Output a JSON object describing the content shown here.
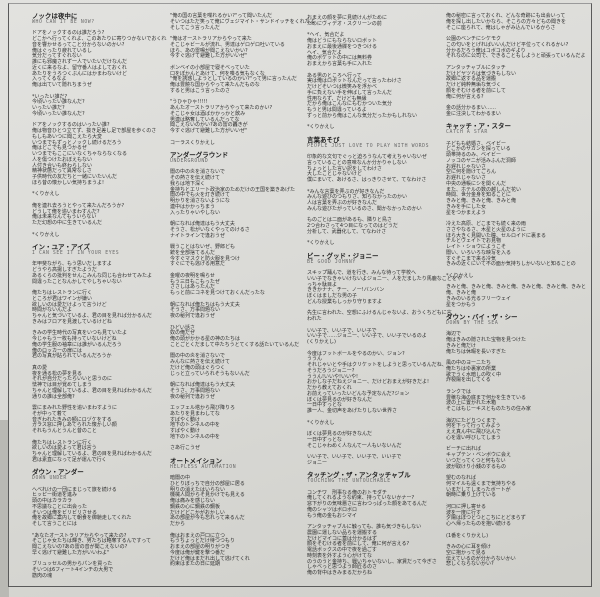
{
  "columns": [
    {
      "blocks": [
        {
          "type": "title",
          "title": "ノックは夜中に",
          "subtitle": "WHO CAN IT BE NOW?"
        },
        {
          "type": "stanza",
          "lines": [
            "ドアをノックするのは誰だろう?",
            "どこかへ行ってくれよ、このあたりに寄りつかないでおくれ",
            "音を響かせるってこと分からないのかい?",
            "俺はぐったり疲れているし",
            "気分だってすぐれない",
            "誰にも邪魔されず一人でいたいだけなんだ",
            "近くに来るなよ、留守番人はよしておくれ",
            "あたりをうろつくぶんにはかまわないけど",
            "入ってくるなよ",
            "俺は出ていて隠れちまうぜ"
          ]
        },
        {
          "type": "stanza",
          "lines": [
            "*いったい誰だ?",
            "  今頃いったい誰なんだ?",
            "  いったい誰だ?",
            "  今頃いったい誰なんだ?"
          ]
        },
        {
          "type": "stanza",
          "lines": [
            "ドアをノックするのはいったい誰?",
            "俺は物音ひとつ立てず、抜き足差し足で部屋を歩くのさ",
            "もしもあいつに聞こえたら大変",
            "いつまでもずっとノックし続けるだろう",
            "俺はどこでも見つかるぜ",
            "いつまでもここにいなくちゃならなくなる",
            "人を傷つけたおぼえもない",
            "人付き合いも終わらしない",
            "精神状態だって異常なしさ",
            "子供時代の友だちと一緒にいたいんだ",
            "ほら昔の懐かしい気持ちまうよ!"
          ]
        },
        {
          "type": "stanza",
          "lines": [
            "*くりかえし"
          ]
        },
        {
          "type": "stanza",
          "lines": [
            "俺を連れ去ろうとやって来たんだろうか?",
            "どうして俺を追いまわすんだ?",
            "俺は未来なんてもういらない",
            "ただ幻想の中に生きているんだ"
          ]
        },
        {
          "type": "stanza",
          "lines": [
            "*くりかえし"
          ]
        },
        {
          "type": "title",
          "title": "イン・ユア・アイズ",
          "subtitle": "I CAN SEE IT IN YOUR EYES"
        },
        {
          "type": "stanza",
          "lines": [
            "年甲斐ながら、もう思いだしますよ",
            "どうやら高揚しすぎたようだ",
            "あるくらの批判をせんこみんな同じも合わせてみたよ",
            "間違ったことなんかしてやしちゃいない"
          ]
        },
        {
          "type": "stanza",
          "lines": [
            "俺たちはレストランに行く",
            "ところが君はワインが嫌い",
            "欲しいのは愛だけよって言うけど",
            "時間がないんだよ",
            "ちゃんと気づいているよ、君の目を見れば分かるんだ",
            "きみはフロアを見渡しているけどね"
          ]
        },
        {
          "type": "stanza",
          "lines": [
            "きみの学生時代の写真をいつも見ていたよ",
            "今じゃもう一枚も持っていないけどね",
            "俺の学生服の袖章には誰がいるんだろう",
            "俺のロッカーの扉には",
            "君の写真が貼られているんだろうか"
          ]
        },
        {
          "type": "stanza",
          "lines": [
            "真の愛",
            "夜を通る松の夢を見る",
            "それが自分だったらいいと思うのに",
            "怯神では目が覚めてしまう",
            "ちゃんと理解しているよ、君の目を見ればわかるんだ",
            "通りの誰は全部俺?"
          ]
        },
        {
          "type": "stanza",
          "lines": [
            "雲にまみれた野性を追いまわすように",
            "そが中って着て",
            "音ぎわれたきみの額にロヅケをする",
            "ガラス窓に押しあてられた懐かしい顔",
            "それもうんとうんと昔のこと"
          ]
        },
        {
          "type": "stanza",
          "lines": [
            "俺たちはレストランに行く",
            "欲しいのは愛よって君は言う",
            "ちゃんと理解しているよ、君の目を見ればわかるんだ",
            "君は素直になって足が運んで行く"
          ]
        },
        {
          "type": "title",
          "title": "ダウン・アンダー",
          "subtitle": "DOWN UNDER"
        },
        {
          "type": "stanza",
          "lines": [
            "へべれけの一団にまじって旅を続ける",
            "ヒッピー街道を進み",
            "頭の中はカラカラ",
            "不思議なことに出会った",
            "そいつは俺をビリビリさせる",
            "俺を故郷に案内して朝食を御馳走してくれた",
            "そして言うことには"
          ]
        },
        {
          "type": "stanza",
          "lines": [
            "\"あなたオーストラリアからやって来たの?",
            "そこじゃ女たちは輝き、男たちは略奪するんですって",
            "聞こえないの?あの雷の音が聞こえないの?",
            "早く逃げて避難した方がいいわよ\""
          ]
        },
        {
          "type": "stanza",
          "lines": [
            "ブリュッセルの男からパンを買った",
            "そいつは6フィート4インチの大男で",
            "筋肉の塊"
          ]
        }
      ]
    },
    {
      "blocks": [
        {
          "type": "stanza",
          "lines": [
            "\"俺の国の言葉を喋れるかい?\"って聞いたんだ",
            "そいつはただ笑って俺にヴェジマイト・サンドイッチをくれたよ",
            "そしてこう言ったんだ"
          ]
        },
        {
          "type": "stanza",
          "lines": [
            "\"俺はオーストラリアからやって来た",
            "そこじゃビールが流れ、男達はゲロゲロ吐いている",
            "ほら、あの雷鳴が聞こえないかい?",
            "今すぐ逃げて避難した方がいいぜ\""
          ]
        },
        {
          "type": "stanza",
          "lines": [
            "ボンベイの小部屋で寝そべっていた",
            "口をぽかんとあけて、何を喋る気もなくな",
            "\"俺を誘惑しようとしているのかい?\"って男に言ったんだ",
            "俺は豊饒な国からやって来たんだものな",
            "すると男はこう言ったのさ"
          ]
        },
        {
          "type": "stanza",
          "lines": [
            "\"うひゃひゃ!!!!!",
            "あんたオーストラリアからやって来たのかい?",
            "そこじゃ女は酒ばかかっかと飲み",
            "男連は略奪しているんだってな",
            "聞こえないのかい?あの雷の轟きが",
            "今すぐ逃げて避難した方がいいぜ\""
          ]
        },
        {
          "type": "stanza",
          "lines": [
            "コーラスくりかえし"
          ]
        },
        {
          "type": "title",
          "title": "アンダーグラウンド",
          "subtitle": "UNDERGROUND"
        },
        {
          "type": "stanza",
          "lines": [
            "闇の中の炎を消さないで",
            "その熱さを伝え続けて",
            "我らは地下深く",
            "金持ちとエリート政治家のためだけの王国を築きあげた",
            "闇の中でも火を灯き続けて",
            "明かりを消さないようにな",
            "連中はかかっちまう",
            "入ったりゃいやしない"
          ]
        },
        {
          "type": "stanza",
          "lines": [
            "朝になれば俺達はもう大丈夫",
            "そうさ、松がいなくやってのけるさ",
            "ナイトラインで逢おうぜ"
          ]
        },
        {
          "type": "stanza",
          "lines": [
            "戦うことはないぜ、野郎ども",
            "銃を全部捨てるんだ",
            "今すぐマスクと防火服を見つけ",
            "すぐにでも逃げる用意だ"
          ]
        },
        {
          "type": "stanza",
          "lines": [
            "金曜の夜明を鳴らせ",
            "もう三日もこもったぜ",
            "ささしはあったんだ",
            "もっと前にコネを見つけておくんだったな"
          ]
        },
        {
          "type": "stanza",
          "lines": [
            "朝になれば俺たちはもう大丈夫",
            "そうさ、万事問題ない",
            "夜の秘列で逢おうぜ"
          ]
        },
        {
          "type": "stanza",
          "lines": [
            "ひどい話さ",
            "奴の俺だぜ",
            "俺の頭がかかる星の神のたちは",
            "ことごとくだまして中たちうとてくする話たいているんだ"
          ]
        },
        {
          "type": "stanza",
          "lines": [
            "闇の中の炎を消さないで",
            "みんなに熱さを伝え続けて",
            "だけど俺の頭はぐらつく",
            "じっと立っていられそうもないんだ"
          ]
        },
        {
          "type": "stanza",
          "lines": [
            "朝になれば俺達はもう大丈夫",
            "そうさ、万事問題ない",
            "夜の秘列で逢おうぜ"
          ]
        },
        {
          "type": "stanza",
          "lines": [
            "エッフェル塔から飛び降りろ",
            "あたりを見まわしてな",
            "すばやく動け",
            "地下のトンネルの中を",
            "すばやく動け",
            "地下のトンネルの中を"
          ]
        },
        {
          "type": "stanza",
          "lines": [
            "さあ行こうぜ"
          ]
        },
        {
          "type": "title",
          "title": "オートメイション",
          "subtitle": "HELPLESS AUTOMATION"
        },
        {
          "type": "stanza",
          "lines": [
            "暗闇の中",
            "ひとりぼっちで自分の部屋に居る",
            "明りの消えたはいらない",
            "機械人間からそ見かけでも見える",
            "俺は痛みを感じない",
            "鋼鉄の心に鋼鉄の鋼板",
            "だけどどこかがおかしい",
            "あの部屋が今も忘れって来るんだ",
            "だから"
          ]
        },
        {
          "type": "stanza",
          "lines": [
            "俺はおまえの戸口に立つ",
            "もうちょっとだけ待つつもり",
            "おまえの部屋の明りがつき",
            "今度は俺が鍵を撃つ番だ",
            "だけど俺はまだれ出して逃げてくれ",
            "約束はまたの日に延期"
          ]
        }
      ]
    },
    {
      "blocks": [
        {
          "type": "stanza",
          "lines": [
            "おまえの顔を夢に見続けんがために",
            "ためにヴィデオ・スクリーンの前"
          ]
        },
        {
          "type": "stanza",
          "lines": [
            "*ヘイ、気合だよ",
            "  俺はどうにもならないロボット",
            "  おまえに最後通牒をつきつける",
            "  ヘイ、気合だよ",
            "  俺のポケットの中には無料券",
            "  おまえから言葉も手に入れた"
          ]
        },
        {
          "type": "stanza",
          "lines": [
            "ある男のところへ行って",
            "実は俺はロボットなんだって言ったわけさ",
            "だけどそいつは微笑みを浮かべ",
            "手に負えない手を伸ばして言ったんだ",
            "性用ならず、だけども無縁",
            "だから俺はこんなにもむかついた気分",
            "もうと男は間違っているよ",
            "ずっと前から俺はこんな気分だったかもしれない"
          ]
        },
        {
          "type": "stanza",
          "lines": [
            "*くりかえし"
          ]
        },
        {
          "type": "title",
          "title": "言葉あそび",
          "subtitle": "PEOPLE JUST LOVE TO PLAY WITH WORDS"
        },
        {
          "type": "stanza",
          "lines": [
            "印象的な文句でぐっと迫ろうなんて考えちゃいないぜ",
            "言っていることの意味なんか分かりゃしない",
            "ちょっとした言い訳をしてわけさ",
            "大したことじゃないけど",
            "僕にまいて、あけるさ、はっきりさせて、てなわけさ"
          ]
        },
        {
          "type": "stanza",
          "lines": [
            "*みんな言葉を弄ぶのが好きなんだ",
            "  みんな遊びのつもりさ、知らなかったのかい",
            "  人は言葉を弄ぶのが好きなんだ",
            "  みんな遊びたがっているのさ、聞かなかったのかい"
          ]
        },
        {
          "type": "stanza",
          "lines": [
            "ものごとは二面があるも、隣りと鳥さ",
            "2つ合わさって4つ目になってのはどうだ",
            "分析して、武器化して、てなわけさ"
          ]
        },
        {
          "type": "stanza",
          "lines": [
            "*くりかえし"
          ]
        },
        {
          "type": "title",
          "title": "ビー・グッド・ジョニー",
          "subtitle": "BE GOOD JOHNNY"
        },
        {
          "type": "stanza",
          "lines": [
            "スキップ踊んで、道を行き、みんな待って学校へ",
            "いい子でなきゃいけないよジョニー、人をだましたり馬鹿なことをや",
            "っちゃ駄目よ",
            "ききかナナ、チー、ノー!バンバン",
            "ぼくはましだな男の子",
            "どんな授業もしっかり守りますよ"
          ]
        },
        {
          "type": "stanza",
          "lines": [
            "先生に言われた、空想にふけるんじゃないよ、おうくちどもに言",
            "われた"
          ]
        },
        {
          "type": "stanza",
          "lines": [
            "いい子で、いい子で、いい子で",
            "いい子で……ジョニー、いい子で、いい子でいるのよ",
            "(くりかえし)"
          ]
        },
        {
          "type": "stanza",
          "lines": [
            "今度はフットボールをやるのかい、ジョン?",
            "ううん",
            "それじゃいとや手はクリケットをしようと思っているんだね、",
            "そうだろうジョニー?",
            "ううん!いいや!いいや!",
            "おかしな子だねえジョニー、だけどおまえが好きだよ!",
            "だから教えておくれ",
            "お前えっていったいどんな予定なんだ?ジョン",
            "ぼくは夢見るのが好きなんだ",
            "一日中ずっとな",
            "誰一人、金切声をあげたりしない世界さ"
          ]
        },
        {
          "type": "stanza",
          "lines": [
            "*くりかえし"
          ]
        },
        {
          "type": "stanza",
          "lines": [
            "ぼくは夢見るのが好きなんだ",
            "一日中ずっとな",
            "そこじゃわめく人なんて一人もいないんだ"
          ]
        },
        {
          "type": "stanza",
          "lines": [
            "いい子で、いい子で、いい子で、いい子で",
            "ジョニー"
          ]
        },
        {
          "type": "title",
          "title": "タッチング・ザ・アンタッチャブル",
          "subtitle": "TOUCHING THE UNTOUCHABLE"
        },
        {
          "type": "stanza",
          "lines": [
            "コンチワ　刑事なる俺のおトモダチ",
            "俺してくれるような約束、持っていないかナー?",
            "窓下がりの気味悪さに言わつっぱった顔をあてるんだ",
            "俺のシャツはボロボロ",
            "もう俺の金もおシマイ"
          ]
        },
        {
          "type": "stanza",
          "lines": [
            "アンタッチャブルに触っても、誰も気づきもしない",
            "農園に運しない品らを運搬する",
            "だけどマイコに蓋は分かるはず",
            "顔をそむける者を前にして、俺に何が言える?",
            "電話ボックスの中で夜を過ごす",
            "時刻表を外すよう心がけてな",
            "のうのうと金持ち、戦いちゃいないし、家賃だって今ぎさ",
            "しゃべっと思つよう師匠るのさ",
            "俺の背中はきみまるだからね"
          ]
        }
      ]
    },
    {
      "blocks": [
        {
          "type": "stanza",
          "lines": [
            "俺の秘密に言っておくれ、どんな奇跡にも出会いって",
            "俺を探し出したいかなら、そこらの方々どもの聞きを",
            "そこに座られて、俺はしゃがみ込んでいるからさ"
          ]
        },
        {
          "type": "stanza",
          "lines": [
            "公園のベンチにシケモク",
            "この匂いをとげればいいんだけど平位ってくれるかい?",
            "分かるだろう俺はコボコボのギより",
            "それなのに公司で、できることもしようと頑張っているんだよ"
          ]
        },
        {
          "type": "stanza",
          "lines": [
            "アンタッチャブルにタッチ",
            "だけどヤツらは気づきもしない",
            "故郷に返する品を運搬",
            "だけど純粋無垢な気づく",
            "顔をそむける者を前にして",
            "俺に何が言える?"
          ]
        },
        {
          "type": "stanza",
          "lines": [
            "金の話分かるまい……",
            "金に注決してわかるまい"
          ]
        },
        {
          "type": "title",
          "title": "キャッチ・ア・スター",
          "subtitle": "CATCH A STAR"
        },
        {
          "type": "stanza",
          "lines": [
            "子どもも結婚さ、ベイビー",
            "どこかのサカンを探っている",
            "頭帯持るのみ、ベイビー",
            "ノッコのヤニが活みふんだ洞師",
            "お遅れじゃないさ",
            "空に何を隠けてごらん",
            "お遅れじゃないさ",
            "中央の通帳にシを関くんだ",
            "また、ホテルの数の越しんだ花い",
            "時間、世分金身を知ることに",
            "きみと俺、きみと俺、きみと俺",
            "きみを手にした女",
            "星をつかまえよう"
          ]
        },
        {
          "type": "stanza",
          "lines": [
            "冷えた高原、どこまでも続く来の雨",
            "ささやなるさ、木星と火星のように",
            "ほら大きく見開いた瞳、セルロイドに裏まる",
            "チルとヴェイトでお見物",
            "レイト・ショウにようこそ",
            "闇い、いろいろな映写を入る",
            "すぐそこまで来る冷気",
            "きみの近くにいて不の面か気持ちしかいないと知ることの"
          ]
        },
        {
          "type": "stanza",
          "lines": [
            "*くりかえし"
          ]
        },
        {
          "type": "stanza",
          "lines": [
            "きみと俺、きみと俺、きみと俺、きみと俺、きみと俺、きみと",
            "俺、きみと俺",
            "きみのいる光るフリーウェイ",
            "星をつかもう"
          ]
        },
        {
          "type": "title",
          "title": "ダウン・バイ・ザ・シー",
          "subtitle": "DOWN BY THE SEA"
        },
        {
          "type": "stanza",
          "lines": [
            "海辺で",
            "俺はきみの隠された宝物を見つけた",
            "きみと俺だけ",
            "俺たちは休暇を長いすぎた"
          ]
        },
        {
          "type": "stanza",
          "lines": [
            "風の中のヨーニたち",
            "俺たちはゆ裏家の所業",
            "歌でうく水暗しの吹く中",
            "炸裂陽を出してくる"
          ]
        },
        {
          "type": "stanza",
          "lines": [
            "ランクでは",
            "豊穣な海の底まで何かを生きている",
            "波の上に置かれた木箱",
            "そこはもじーキスとものたちの住み家"
          ]
        },
        {
          "type": "stanza",
          "lines": [
            "海辺にたどりつくまで",
            "何を下って行ってみよう",
            "ええ真ん中に飛び込んで",
            "心を違い呼びしてしまう"
          ]
        },
        {
          "type": "stanza",
          "lines": [
            "ビーチに出れば",
            "キャプテン・ベンボウに会え",
            "いつだってくつと何もない",
            "波が取けり小銭のするもの"
          ]
        },
        {
          "type": "stanza",
          "lines": [
            "望むのなれば",
            "何マイルも遠くまで気持ちやる",
            "いまだしてしまったボートが",
            "朝時に乗り上げている"
          ]
        },
        {
          "type": "stanza",
          "lines": [
            "河口に押し寄せる",
            "波を一度に行す",
            "夕陽はぼつとつとこちにとどまらず",
            "心へ帰ったものを抱い続ける"
          ]
        },
        {
          "type": "stanza",
          "lines": [
            "(1番をくりかえし)"
          ]
        },
        {
          "type": "stanza",
          "lines": [
            "きみの心に耳を傾け",
            "空に抱かって見る",
            "伝えているのが分からないかい",
            "悲しくならないかい?"
          ]
        }
      ]
    }
  ]
}
